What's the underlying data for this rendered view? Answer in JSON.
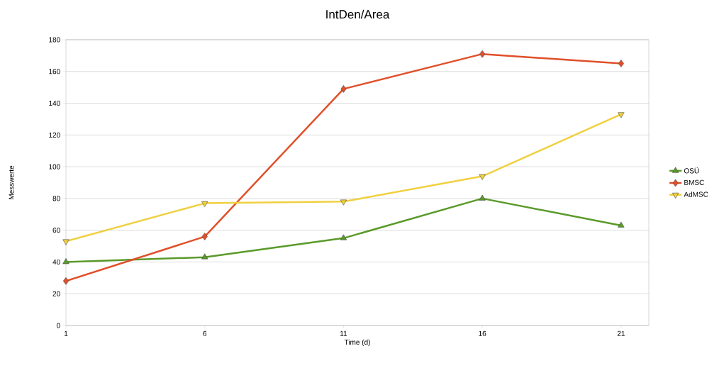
{
  "chart_data": {
    "type": "line",
    "title": "IntDen/Area",
    "xlabel": "Time (d)",
    "ylabel": "Messwerte",
    "x": [
      1,
      6,
      11,
      16,
      21
    ],
    "series": [
      {
        "name": "OSÜ",
        "color": "#5a9a2a",
        "marker": "triangle",
        "values": [
          40,
          43,
          55,
          80,
          63
        ]
      },
      {
        "name": "BMSC",
        "color": "#e0502a",
        "marker": "diamond",
        "values": [
          28,
          56,
          149,
          171,
          165
        ]
      },
      {
        "name": "AdMSC",
        "color": "#f0d040",
        "marker": "triangle-down",
        "values": [
          53,
          77,
          78,
          94,
          133
        ]
      }
    ],
    "xlim": [
      1,
      22
    ],
    "xticks": [
      1,
      6,
      11,
      16,
      21
    ],
    "ylim": [
      0,
      180
    ],
    "yticks": [
      0,
      20,
      40,
      60,
      80,
      100,
      120,
      140,
      160,
      180
    ],
    "grid": "y",
    "legend": "right"
  }
}
